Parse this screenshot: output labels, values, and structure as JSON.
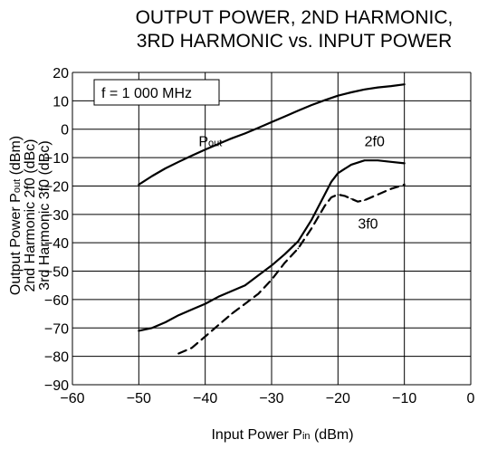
{
  "chart_data": {
    "type": "line",
    "title_lines": [
      "OUTPUT POWER, 2ND HARMONIC,",
      "3RD HARMONIC vs. INPUT POWER"
    ],
    "xlabel": {
      "main": "Input Power  P",
      "sub": "in",
      "unit": " (dBm)"
    },
    "ylabel_lines": [
      {
        "main": "Output Power  P",
        "sub": "out",
        "unit": " (dBm)"
      },
      {
        "main": "2nd Harmonic  2f0 (dBc)",
        "sub": "",
        "unit": ""
      },
      {
        "main": "3rd Harmonic  3f0 (dBc)",
        "sub": "",
        "unit": ""
      }
    ],
    "xlim": [
      -60,
      0
    ],
    "ylim": [
      -90,
      20
    ],
    "x_ticks": [
      -60,
      -50,
      -40,
      -30,
      -20,
      -10,
      0
    ],
    "x_tick_labels": [
      "−60",
      "−50",
      "−40",
      "−30",
      "−20",
      "−10",
      "0"
    ],
    "y_ticks": [
      20,
      10,
      0,
      -10,
      -20,
      -30,
      -40,
      -50,
      -60,
      -70,
      -80,
      -90
    ],
    "y_tick_labels": [
      "20",
      "10",
      "0",
      "−10",
      "−20",
      "−30",
      "−40",
      "−50",
      "−60",
      "−70",
      "−80",
      "−90"
    ],
    "grid": true,
    "condition_label": "f = 1 000 MHz",
    "series": [
      {
        "name": "Pout",
        "label_main": "P",
        "label_sub": "out",
        "dash": false,
        "x": [
          -50,
          -48,
          -46,
          -44,
          -42,
          -40,
          -38,
          -36,
          -34,
          -32,
          -30,
          -28,
          -26,
          -24,
          -22,
          -20,
          -18,
          -16,
          -14,
          -12,
          -10
        ],
        "y": [
          -19.5,
          -16.5,
          -13.8,
          -11.5,
          -9.3,
          -7.2,
          -5.2,
          -3.2,
          -1.5,
          0.5,
          2.5,
          4.5,
          6.5,
          8.5,
          10.2,
          11.8,
          13,
          14,
          14.7,
          15.2,
          15.8
        ]
      },
      {
        "name": "2f0",
        "label_main": "2f0",
        "label_sub": "",
        "dash": false,
        "x": [
          -50,
          -48,
          -46,
          -44,
          -42,
          -40,
          -38,
          -36,
          -34,
          -32,
          -30,
          -28,
          -26,
          -24,
          -22,
          -21,
          -20,
          -18,
          -16,
          -15,
          -14,
          -12,
          -10
        ],
        "y": [
          -71,
          -70,
          -68,
          -65.5,
          -63.5,
          -61.5,
          -59,
          -57,
          -55,
          -51.5,
          -48,
          -44,
          -39.5,
          -32,
          -23,
          -18.5,
          -15.5,
          -12.5,
          -11,
          -11,
          -11,
          -11.5,
          -12
        ]
      },
      {
        "name": "3f0",
        "label_main": "3f0",
        "label_sub": "",
        "dash": true,
        "x": [
          -44,
          -42,
          -40,
          -38,
          -36,
          -34,
          -32,
          -30,
          -28,
          -26,
          -24,
          -22,
          -21,
          -20,
          -19,
          -18,
          -17,
          -16,
          -14,
          -12,
          -10
        ],
        "y": [
          -79,
          -77,
          -73,
          -69,
          -65,
          -61.5,
          -58,
          -53,
          -47,
          -42,
          -35,
          -27,
          -24,
          -23,
          -23.5,
          -24.5,
          -25.5,
          -25,
          -23,
          -21,
          -19.5
        ]
      }
    ],
    "label_positions": [
      {
        "series": "Pout",
        "x": -41,
        "y": -6
      },
      {
        "series": "2f0",
        "x": -16,
        "y": -6
      },
      {
        "series": "3f0",
        "x": -17,
        "y": -35
      }
    ]
  }
}
